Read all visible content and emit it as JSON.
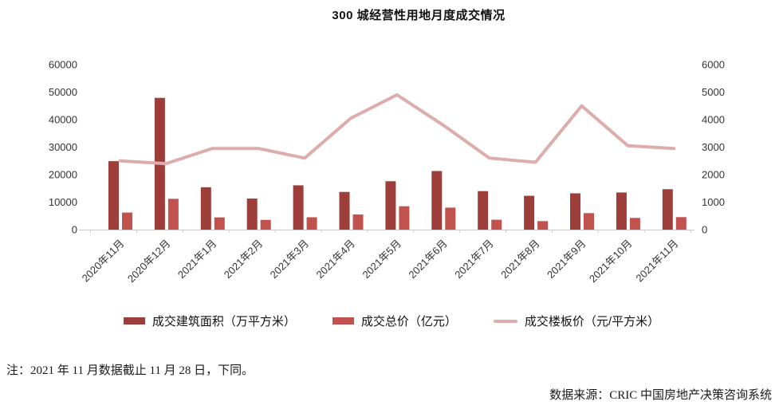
{
  "title": "300 城经营性用地月度成交情况",
  "note": "注：2021 年 11 月数据截止 11 月 28 日，下同。",
  "source": "数据来源：CRIC 中国房地产决策咨询系统",
  "chart_data": {
    "type": "bar",
    "subtype": "dual-axis bar + line combo",
    "categories": [
      "2020年11月",
      "2020年12月",
      "2021年1月",
      "2021年2月",
      "2021年3月",
      "2021年4月",
      "2021年5月",
      "2021年6月",
      "2021年7月",
      "2021年8月",
      "2021年9月",
      "2021年10月",
      "2021年11月"
    ],
    "series": [
      {
        "name": "成交建筑面积（万平方米）",
        "type": "bar",
        "axis": "left",
        "color": "#9e3e3a",
        "values": [
          24900,
          47900,
          15400,
          11300,
          16100,
          13700,
          17600,
          21300,
          14000,
          12300,
          13200,
          13500,
          14700
        ]
      },
      {
        "name": "成交总价（亿元）",
        "type": "bar",
        "axis": "left",
        "color": "#c2524d",
        "values": [
          6200,
          11200,
          4450,
          3550,
          4500,
          5500,
          8500,
          8000,
          3600,
          3100,
          6000,
          4250,
          4550
        ]
      },
      {
        "name": "成交楼板价（元/平方米）",
        "type": "line",
        "axis": "right",
        "color": "#dcadaa",
        "values": [
          2500,
          2400,
          2950,
          2950,
          2600,
          4050,
          4900,
          3800,
          2600,
          2450,
          4500,
          3050,
          2950
        ]
      }
    ],
    "left_axis": {
      "min": 0,
      "max": 60000,
      "step": 10000,
      "tick_labels": [
        "0",
        "10000",
        "20000",
        "30000",
        "40000",
        "50000",
        "60000"
      ]
    },
    "right_axis": {
      "min": 0,
      "max": 6000,
      "step": 1000,
      "tick_labels": [
        "0",
        "1000",
        "2000",
        "3000",
        "4000",
        "5000",
        "6000"
      ]
    },
    "grid": false,
    "legend_position": "bottom"
  }
}
